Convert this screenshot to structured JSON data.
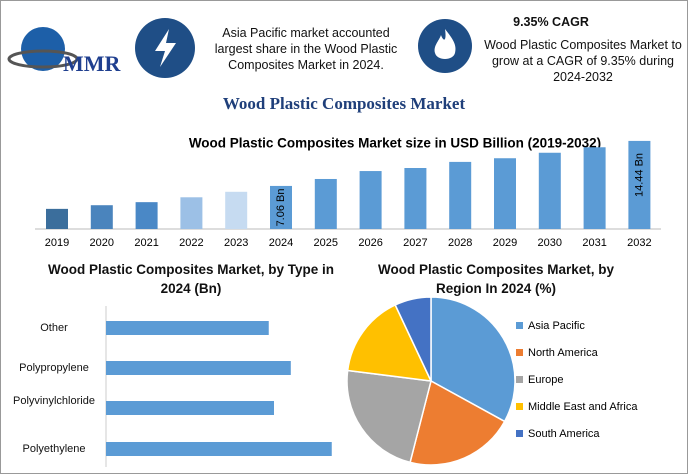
{
  "header": {
    "logo": "MMR",
    "info1": "Asia Pacific market accounted largest share in the Wood Plastic Composites Market in 2024.",
    "cagr": "9.35% CAGR",
    "info2": "Wood Plastic Composites Market to grow at a CAGR of 9.35% during 2024-2032"
  },
  "title": "Wood Plastic Composites Market",
  "chart_data": [
    {
      "type": "bar",
      "title": "Wood Plastic Composites Market size in USD Billion (2019-2032)",
      "categories": [
        "2019",
        "2020",
        "2021",
        "2022",
        "2023",
        "2024",
        "2025",
        "2026",
        "2027",
        "2028",
        "2029",
        "2030",
        "2031",
        "2032"
      ],
      "values": [
        3.3,
        3.9,
        4.4,
        5.2,
        6.1,
        7.06,
        8.2,
        9.5,
        10.0,
        11.0,
        11.6,
        12.5,
        13.4,
        14.44
      ],
      "value_labels": [
        null,
        null,
        null,
        null,
        null,
        "7.06 Bn",
        null,
        null,
        null,
        null,
        null,
        null,
        null,
        "14.44 Bn"
      ],
      "colors": [
        "#3b6e9c",
        "#4a84bd",
        "#4a88c6",
        "#9cc0e6",
        "#c6dbf1",
        "#5b9bd5",
        "#5b9bd5",
        "#5b9bd5",
        "#5b9bd5",
        "#5b9bd5",
        "#5b9bd5",
        "#5b9bd5",
        "#5b9bd5",
        "#5b9bd5"
      ]
    },
    {
      "type": "hbar",
      "title": "Wood Plastic Composites Market, by Type in 2024 (Bn)",
      "categories": [
        "Other",
        "Polypropylene",
        "Polyvinylchloride",
        "Polyethylene"
      ],
      "values": [
        1.55,
        1.76,
        1.6,
        2.15
      ],
      "color": "#5b9bd5"
    },
    {
      "type": "pie",
      "title": "Wood Plastic Composites Market, by Region In 2024 (%)",
      "categories": [
        "Asia Pacific",
        "North America",
        "Europe",
        "Middle East and Africa",
        "South America"
      ],
      "values": [
        33,
        21,
        23,
        16,
        7
      ],
      "colors": [
        "#5b9bd5",
        "#ed7d31",
        "#a5a5a5",
        "#ffc000",
        "#4472c4"
      ]
    }
  ]
}
